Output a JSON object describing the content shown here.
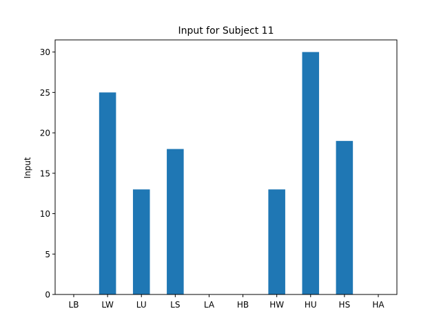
{
  "chart_data": {
    "type": "bar",
    "title": "Input for Subject 11",
    "xlabel": "",
    "ylabel": "Input",
    "categories": [
      "LB",
      "LW",
      "LU",
      "LS",
      "LA",
      "HB",
      "HW",
      "HU",
      "HS",
      "HA"
    ],
    "values": [
      0,
      25,
      13,
      18,
      0,
      0,
      13,
      30,
      19,
      0
    ],
    "ylim": [
      0,
      31.5
    ],
    "yticks": [
      0,
      5,
      10,
      15,
      20,
      25,
      30
    ],
    "bar_color": "#1f77b4",
    "grid": false,
    "legend": "none"
  }
}
